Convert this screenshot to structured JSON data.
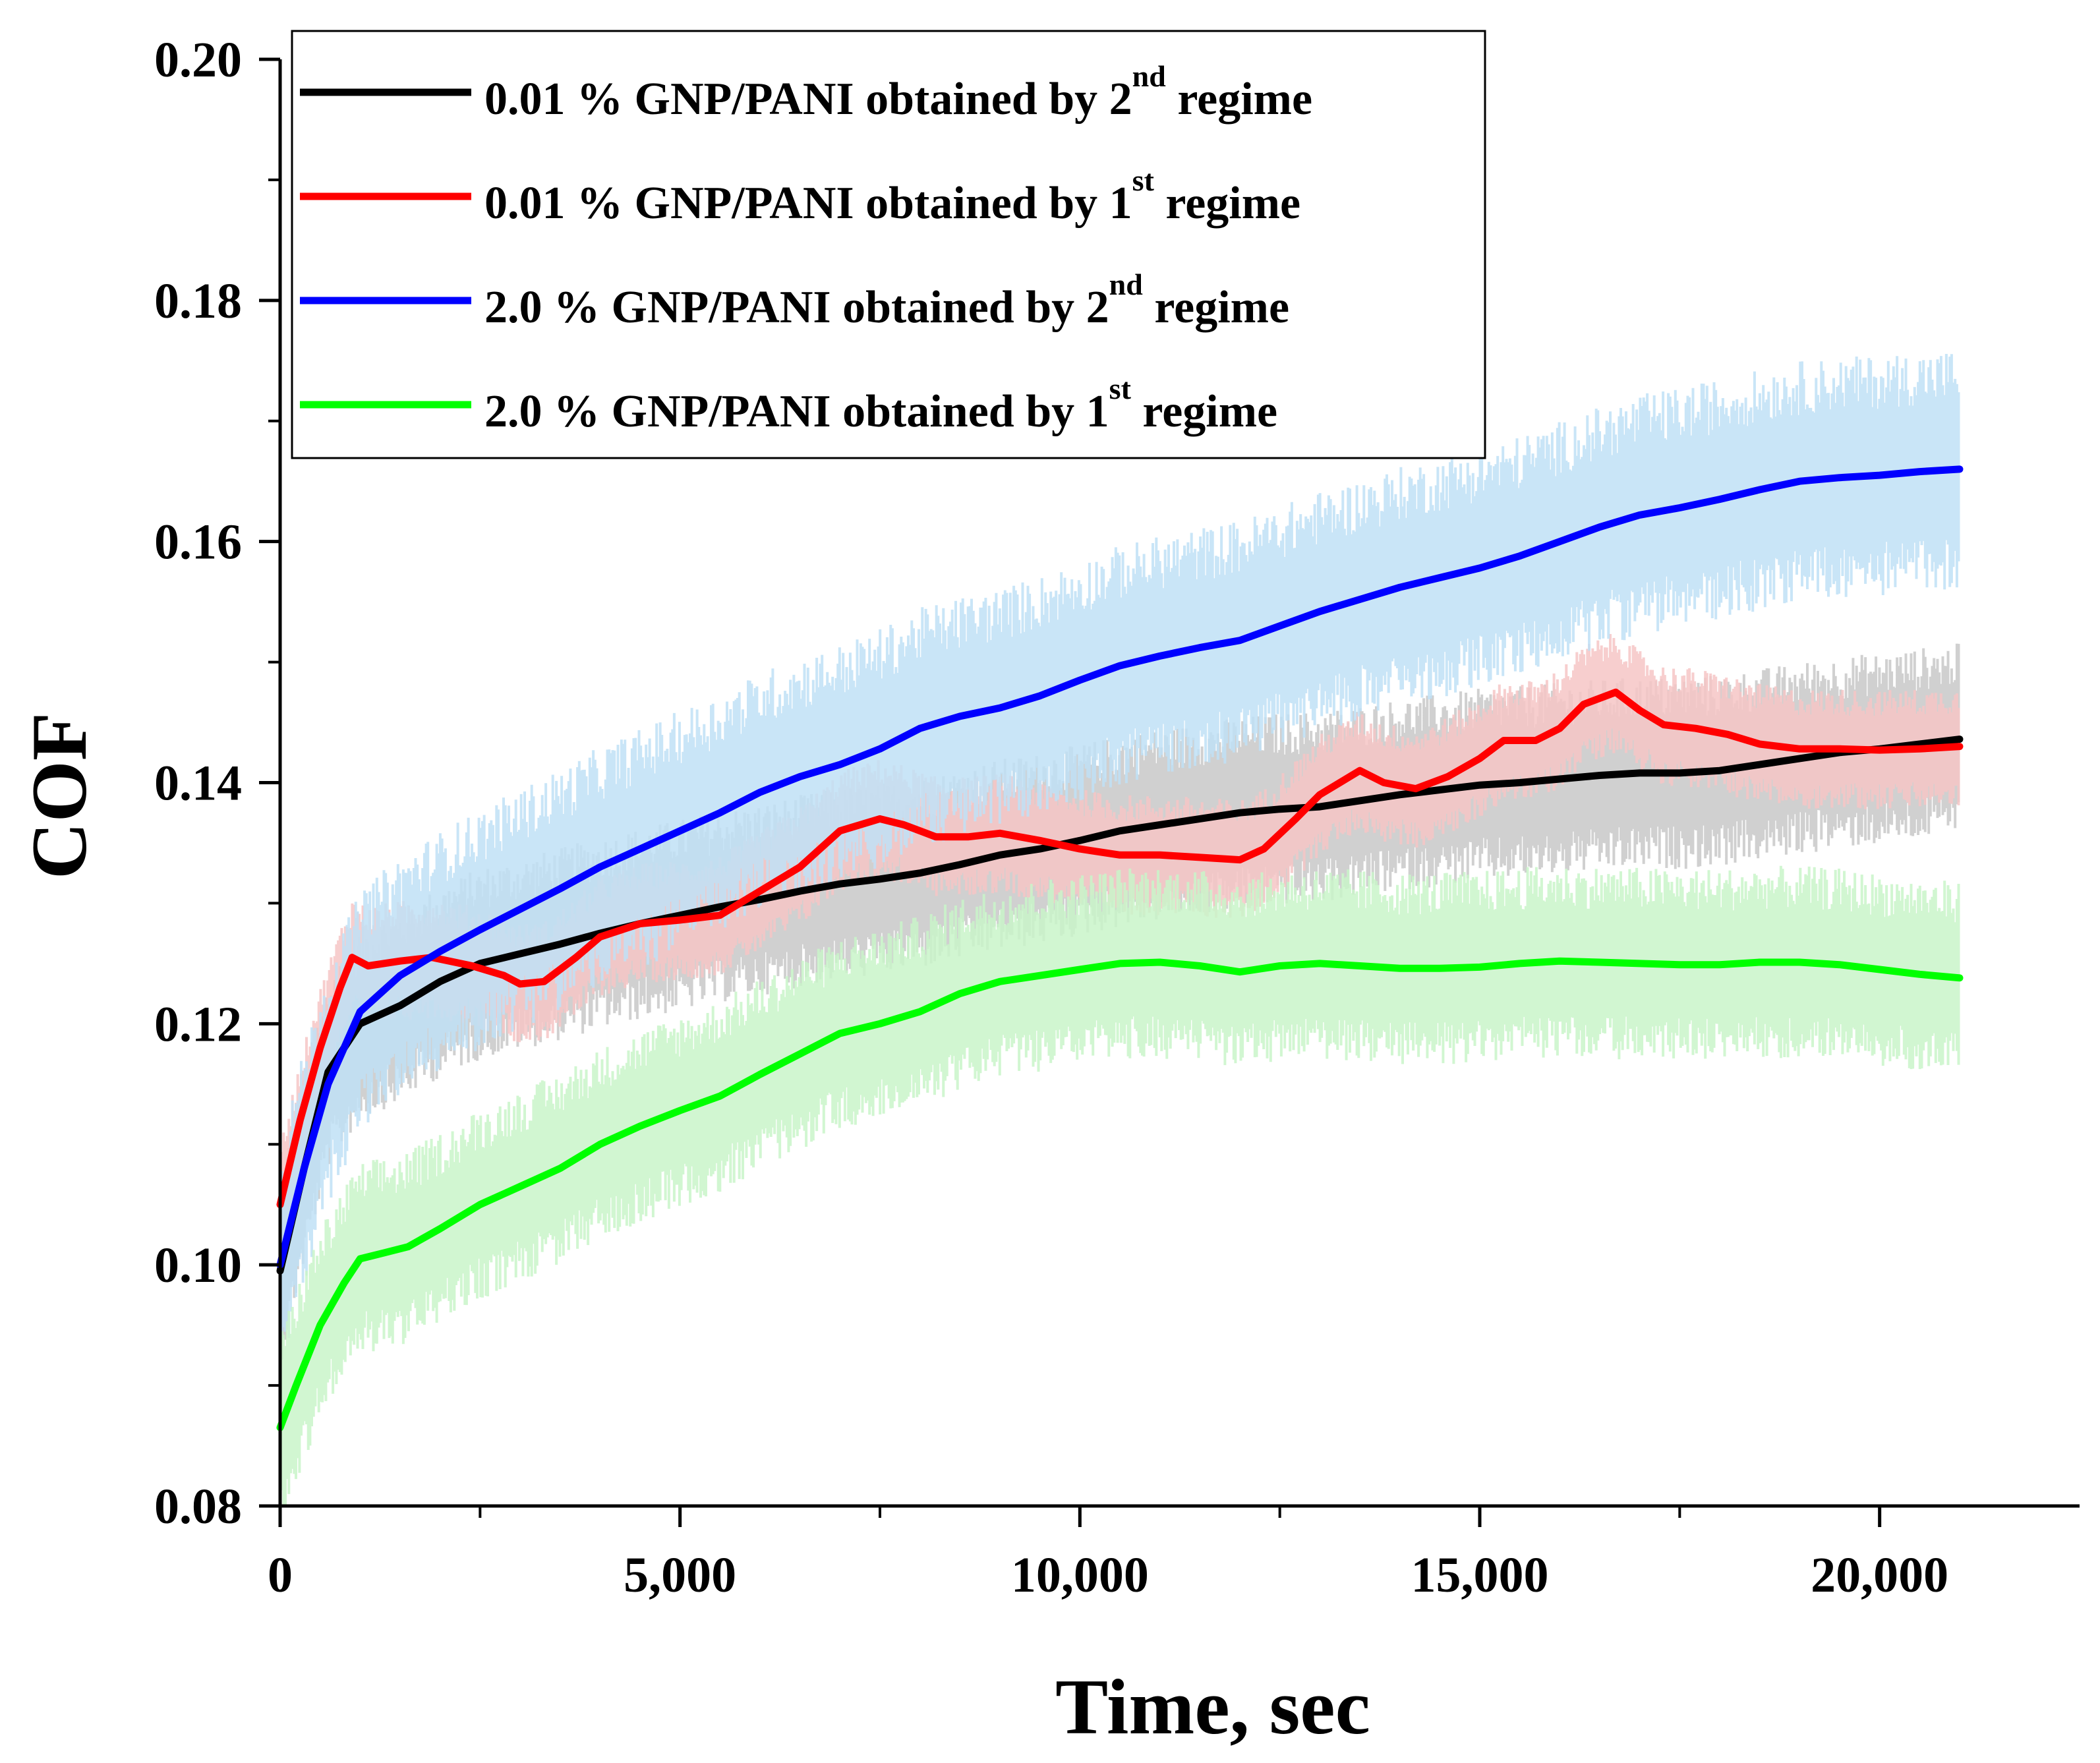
{
  "chart_data": {
    "type": "line",
    "title": "",
    "xlabel": "Time, sec",
    "ylabel": "COF",
    "xlim": [
      0,
      22500
    ],
    "ylim": [
      0.08,
      0.2
    ],
    "xticks": [
      0,
      5000,
      10000,
      15000,
      20000
    ],
    "xtick_labels": [
      "0",
      "5,000",
      "10,000",
      "15,000",
      "20,000"
    ],
    "yticks": [
      0.08,
      0.1,
      0.12,
      0.14,
      0.16,
      0.18,
      0.2
    ],
    "ytick_labels": [
      "0.08",
      "0.10",
      "0.12",
      "0.14",
      "0.16",
      "0.18",
      "0.20"
    ],
    "grid": false,
    "legend_position": "top-left",
    "series": [
      {
        "name": "0.01 % GNP/PANI obtained by 2nd regime",
        "label_main": "0.01 % GNP/PANI obtained by 2",
        "label_sup": "nd",
        "label_tail": " regime",
        "color": "#000000",
        "band_color": "#c8c8c8",
        "noise": 0.008,
        "points": [
          [
            0,
            0.0995
          ],
          [
            300,
            0.108
          ],
          [
            600,
            0.116
          ],
          [
            1000,
            0.12
          ],
          [
            1500,
            0.1215
          ],
          [
            2000,
            0.1235
          ],
          [
            2500,
            0.125
          ],
          [
            3000,
            0.1258
          ],
          [
            3500,
            0.1266
          ],
          [
            4000,
            0.1275
          ],
          [
            4500,
            0.1283
          ],
          [
            5000,
            0.129
          ],
          [
            5500,
            0.1297
          ],
          [
            6000,
            0.1303
          ],
          [
            6500,
            0.131
          ],
          [
            7000,
            0.1316
          ],
          [
            7500,
            0.132
          ],
          [
            8000,
            0.1325
          ],
          [
            8500,
            0.1332
          ],
          [
            9000,
            0.134
          ],
          [
            9500,
            0.1345
          ],
          [
            10000,
            0.1352
          ],
          [
            10500,
            0.136
          ],
          [
            11000,
            0.1365
          ],
          [
            11500,
            0.137
          ],
          [
            12000,
            0.1375
          ],
          [
            12500,
            0.1378
          ],
          [
            13000,
            0.138
          ],
          [
            13500,
            0.1385
          ],
          [
            14000,
            0.139
          ],
          [
            14500,
            0.1394
          ],
          [
            15000,
            0.1398
          ],
          [
            15500,
            0.14
          ],
          [
            16000,
            0.1403
          ],
          [
            16500,
            0.1406
          ],
          [
            17000,
            0.1408
          ],
          [
            17500,
            0.1408
          ],
          [
            18000,
            0.141
          ],
          [
            18500,
            0.1415
          ],
          [
            19000,
            0.142
          ],
          [
            19500,
            0.1425
          ],
          [
            20000,
            0.1428
          ],
          [
            20500,
            0.1432
          ],
          [
            21000,
            0.1436
          ]
        ]
      },
      {
        "name": "0.01 % GNP/PANI obtained by 1st regime",
        "label_main": "0.01 % GNP/PANI obtained by 1",
        "label_sup": "st",
        "label_tail": " regime",
        "color": "#ff0000",
        "band_color": "#f6c5c5",
        "noise": 0.005,
        "points": [
          [
            0,
            0.105
          ],
          [
            250,
            0.112
          ],
          [
            500,
            0.118
          ],
          [
            750,
            0.123
          ],
          [
            900,
            0.1255
          ],
          [
            1100,
            0.1248
          ],
          [
            1500,
            0.1252
          ],
          [
            1900,
            0.1255
          ],
          [
            2400,
            0.1248
          ],
          [
            2800,
            0.124
          ],
          [
            3000,
            0.1233
          ],
          [
            3300,
            0.1235
          ],
          [
            3700,
            0.1255
          ],
          [
            4000,
            0.1272
          ],
          [
            4500,
            0.1283
          ],
          [
            5000,
            0.1286
          ],
          [
            5500,
            0.129
          ],
          [
            6000,
            0.131
          ],
          [
            6500,
            0.133
          ],
          [
            7000,
            0.136
          ],
          [
            7500,
            0.137
          ],
          [
            7800,
            0.1365
          ],
          [
            8200,
            0.1355
          ],
          [
            8600,
            0.1355
          ],
          [
            9000,
            0.1358
          ],
          [
            9500,
            0.1352
          ],
          [
            10000,
            0.1345
          ],
          [
            10500,
            0.134
          ],
          [
            11000,
            0.134
          ],
          [
            11500,
            0.1338
          ],
          [
            12000,
            0.1336
          ],
          [
            12300,
            0.1345
          ],
          [
            12700,
            0.137
          ],
          [
            13000,
            0.139
          ],
          [
            13500,
            0.141
          ],
          [
            13800,
            0.14
          ],
          [
            14200,
            0.1395
          ],
          [
            14600,
            0.1405
          ],
          [
            15000,
            0.142
          ],
          [
            15300,
            0.1435
          ],
          [
            15700,
            0.1435
          ],
          [
            16000,
            0.1445
          ],
          [
            16300,
            0.1465
          ],
          [
            16700,
            0.1475
          ],
          [
            17000,
            0.146
          ],
          [
            17300,
            0.1448
          ],
          [
            17700,
            0.1445
          ],
          [
            18100,
            0.144
          ],
          [
            18500,
            0.1432
          ],
          [
            19000,
            0.1428
          ],
          [
            19500,
            0.1428
          ],
          [
            20000,
            0.1427
          ],
          [
            20500,
            0.1428
          ],
          [
            21000,
            0.143
          ]
        ]
      },
      {
        "name": "2.0 % GNP/PANI obtained by 2nd regime",
        "label_main": "2.0 % GNP/PANI obtained by 2",
        "label_sup": "nd",
        "label_tail": " regime",
        "color": "#0000ff",
        "band_color": "#bfe0f6",
        "noise": 0.01,
        "points": [
          [
            0,
            0.1
          ],
          [
            300,
            0.108
          ],
          [
            600,
            0.115
          ],
          [
            1000,
            0.121
          ],
          [
            1500,
            0.124
          ],
          [
            2000,
            0.126
          ],
          [
            2500,
            0.1278
          ],
          [
            3000,
            0.1295
          ],
          [
            3500,
            0.1312
          ],
          [
            4000,
            0.133
          ],
          [
            4500,
            0.1345
          ],
          [
            5000,
            0.136
          ],
          [
            5500,
            0.1375
          ],
          [
            6000,
            0.1392
          ],
          [
            6500,
            0.1405
          ],
          [
            7000,
            0.1415
          ],
          [
            7500,
            0.1428
          ],
          [
            8000,
            0.1445
          ],
          [
            8500,
            0.1455
          ],
          [
            9000,
            0.1462
          ],
          [
            9500,
            0.1472
          ],
          [
            10000,
            0.1485
          ],
          [
            10500,
            0.1497
          ],
          [
            11000,
            0.1505
          ],
          [
            11500,
            0.1512
          ],
          [
            12000,
            0.1518
          ],
          [
            12500,
            0.153
          ],
          [
            13000,
            0.1542
          ],
          [
            13500,
            0.1552
          ],
          [
            14000,
            0.1562
          ],
          [
            14500,
            0.157
          ],
          [
            15000,
            0.1578
          ],
          [
            15500,
            0.1588
          ],
          [
            16000,
            0.16
          ],
          [
            16500,
            0.1612
          ],
          [
            17000,
            0.1622
          ],
          [
            17500,
            0.1628
          ],
          [
            18000,
            0.1635
          ],
          [
            18500,
            0.1643
          ],
          [
            19000,
            0.165
          ],
          [
            19500,
            0.1653
          ],
          [
            20000,
            0.1655
          ],
          [
            20500,
            0.1658
          ],
          [
            21000,
            0.166
          ]
        ]
      },
      {
        "name": "2.0 % GNP/PANI obtained by 1st regime",
        "label_main": "2.0 % GNP/PANI obtained by 1",
        "label_sup": "st",
        "label_tail": " regime",
        "color": "#00ff00",
        "band_color": "#c9f4c9",
        "noise": 0.008,
        "points": [
          [
            0,
            0.0865
          ],
          [
            200,
            0.09
          ],
          [
            500,
            0.095
          ],
          [
            800,
            0.0985
          ],
          [
            1000,
            0.1005
          ],
          [
            1300,
            0.101
          ],
          [
            1600,
            0.1015
          ],
          [
            2000,
            0.103
          ],
          [
            2500,
            0.105
          ],
          [
            3000,
            0.1065
          ],
          [
            3500,
            0.108
          ],
          [
            4000,
            0.11
          ],
          [
            4500,
            0.1115
          ],
          [
            5000,
            0.1128
          ],
          [
            5500,
            0.114
          ],
          [
            6000,
            0.1158
          ],
          [
            6500,
            0.1175
          ],
          [
            7000,
            0.1192
          ],
          [
            7500,
            0.12
          ],
          [
            8000,
            0.121
          ],
          [
            8500,
            0.1225
          ],
          [
            9000,
            0.1235
          ],
          [
            9500,
            0.124
          ],
          [
            10000,
            0.1245
          ],
          [
            10500,
            0.125
          ],
          [
            11000,
            0.1251
          ],
          [
            11500,
            0.1248
          ],
          [
            12000,
            0.1243
          ],
          [
            12500,
            0.1248
          ],
          [
            13000,
            0.125
          ],
          [
            13500,
            0.1248
          ],
          [
            14000,
            0.1246
          ],
          [
            14500,
            0.1246
          ],
          [
            15000,
            0.1247
          ],
          [
            15500,
            0.125
          ],
          [
            16000,
            0.1252
          ],
          [
            16500,
            0.1251
          ],
          [
            17000,
            0.125
          ],
          [
            17500,
            0.1249
          ],
          [
            18000,
            0.1249
          ],
          [
            18500,
            0.1251
          ],
          [
            19000,
            0.1251
          ],
          [
            19500,
            0.1249
          ],
          [
            20000,
            0.1245
          ],
          [
            20500,
            0.1241
          ],
          [
            21000,
            0.1238
          ]
        ]
      }
    ]
  }
}
